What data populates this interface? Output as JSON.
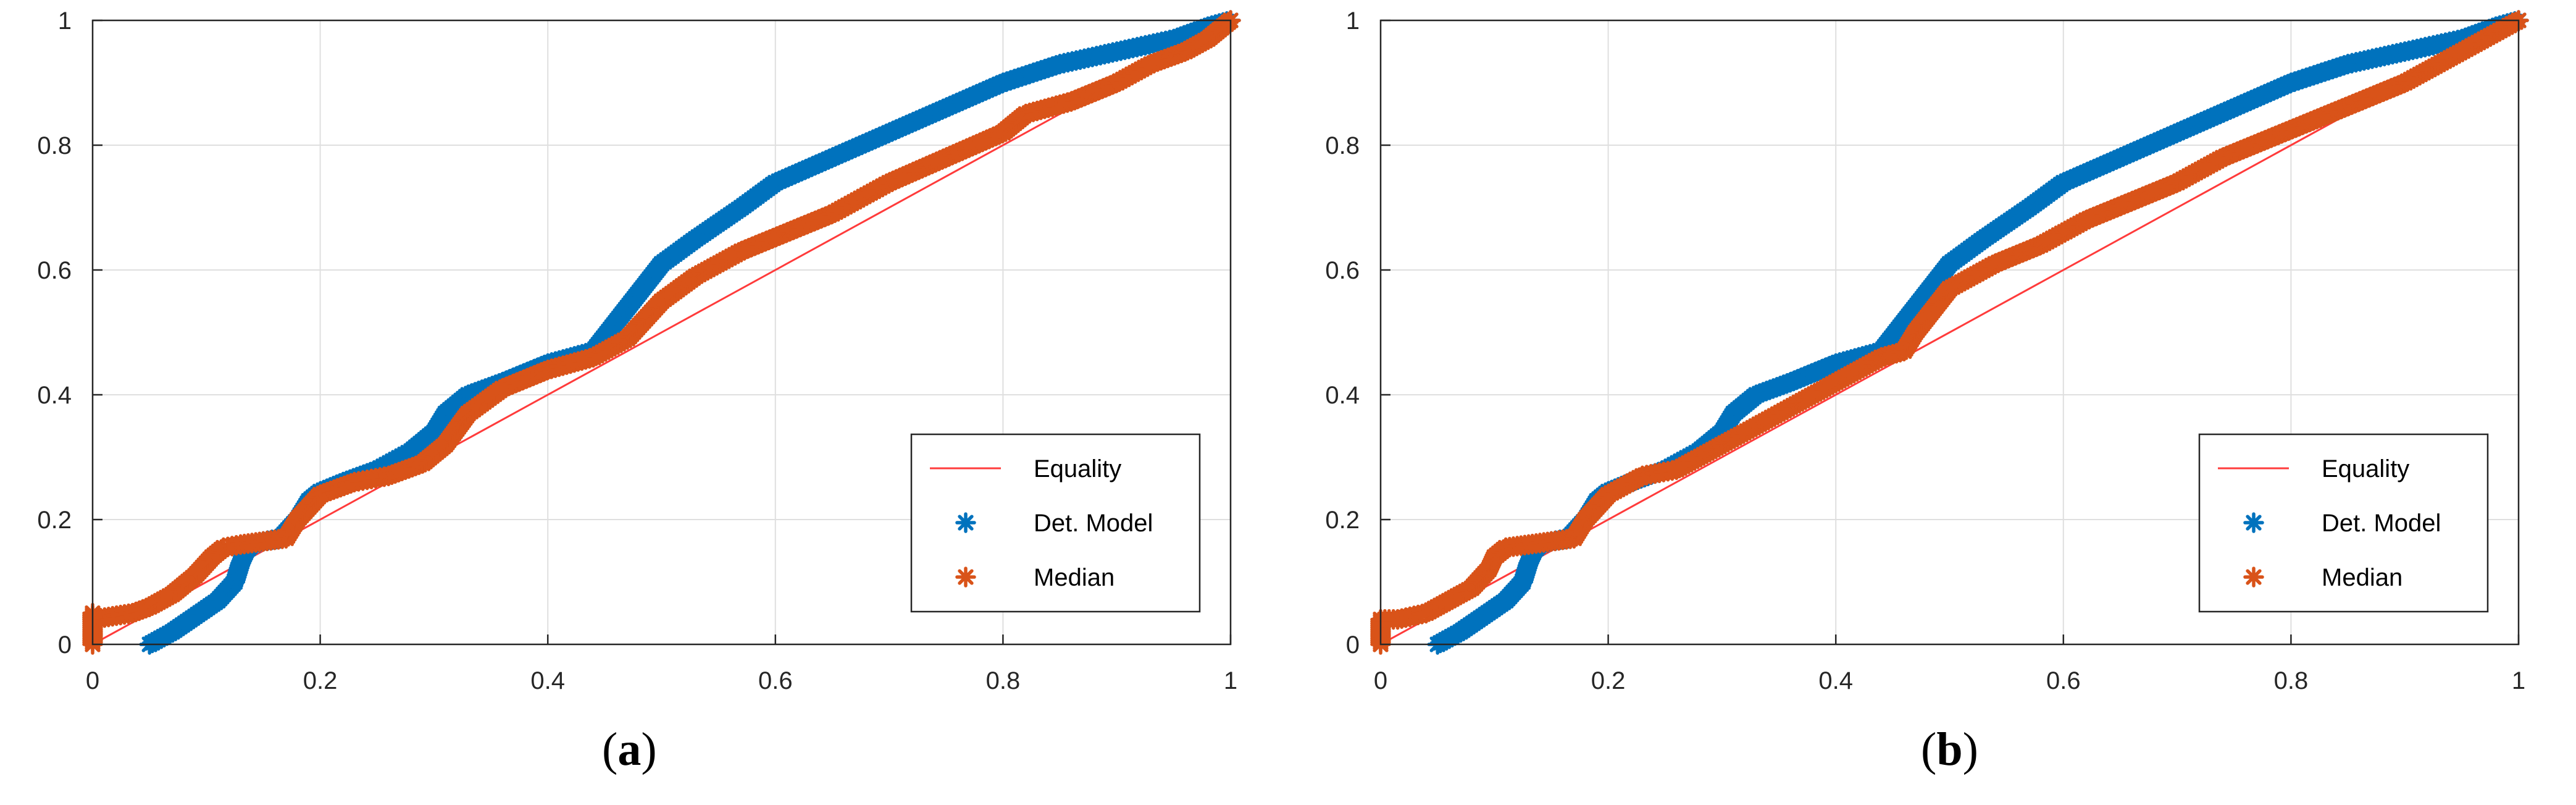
{
  "chart_data": [
    {
      "type": "line",
      "caption_letter": "a",
      "xlim": [
        0,
        1
      ],
      "ylim": [
        0,
        1
      ],
      "x_ticks": [
        "0",
        "0.2",
        "0.4",
        "0.6",
        "0.8",
        "1"
      ],
      "y_ticks": [
        "0",
        "0.2",
        "0.4",
        "0.6",
        "0.8",
        "1"
      ],
      "grid": true,
      "legend_position": "bottom-right",
      "colors": {
        "equality": "#ff3b3b",
        "det": "#0072bd",
        "median": "#d95319"
      },
      "series": [
        {
          "name": "Equality",
          "style": "line",
          "x": [
            0,
            1
          ],
          "y": [
            0,
            1
          ]
        },
        {
          "name": "Det. Model",
          "style": "marker",
          "x": [
            0.05,
            0.07,
            0.09,
            0.11,
            0.125,
            0.13,
            0.135,
            0.14,
            0.15,
            0.165,
            0.18,
            0.19,
            0.2,
            0.22,
            0.25,
            0.28,
            0.3,
            0.31,
            0.33,
            0.36,
            0.4,
            0.44,
            0.47,
            0.5,
            0.53,
            0.57,
            0.6,
            0.65,
            0.7,
            0.75,
            0.8,
            0.85,
            0.9,
            0.95,
            0.98,
            1.0
          ],
          "y": [
            0.0,
            0.02,
            0.045,
            0.07,
            0.1,
            0.13,
            0.15,
            0.16,
            0.165,
            0.17,
            0.2,
            0.23,
            0.245,
            0.26,
            0.28,
            0.31,
            0.34,
            0.37,
            0.4,
            0.42,
            0.45,
            0.47,
            0.54,
            0.61,
            0.65,
            0.7,
            0.74,
            0.78,
            0.82,
            0.86,
            0.9,
            0.93,
            0.95,
            0.97,
            0.99,
            1.0
          ]
        },
        {
          "name": "Median",
          "style": "marker",
          "x": [
            0,
            0,
            0,
            0,
            0,
            0,
            0,
            0.035,
            0.05,
            0.07,
            0.09,
            0.105,
            0.115,
            0.13,
            0.15,
            0.17,
            0.18,
            0.2,
            0.23,
            0.26,
            0.29,
            0.31,
            0.33,
            0.36,
            0.4,
            0.44,
            0.47,
            0.5,
            0.53,
            0.57,
            0.61,
            0.65,
            0.7,
            0.75,
            0.8,
            0.82,
            0.86,
            0.9,
            0.93,
            0.96,
            0.98,
            1.0
          ],
          "y": [
            0.0,
            0.01,
            0.02,
            0.03,
            0.04,
            0.05,
            0.04,
            0.05,
            0.06,
            0.08,
            0.11,
            0.14,
            0.155,
            0.16,
            0.165,
            0.17,
            0.2,
            0.24,
            0.26,
            0.27,
            0.29,
            0.32,
            0.37,
            0.41,
            0.44,
            0.46,
            0.49,
            0.55,
            0.59,
            0.63,
            0.66,
            0.69,
            0.74,
            0.78,
            0.82,
            0.85,
            0.87,
            0.9,
            0.93,
            0.95,
            0.97,
            1.0
          ]
        }
      ]
    },
    {
      "type": "line",
      "caption_letter": "b",
      "xlim": [
        0,
        1
      ],
      "ylim": [
        0,
        1
      ],
      "x_ticks": [
        "0",
        "0.2",
        "0.4",
        "0.6",
        "0.8",
        "1"
      ],
      "y_ticks": [
        "0",
        "0.2",
        "0.4",
        "0.6",
        "0.8",
        "1"
      ],
      "grid": true,
      "legend_position": "bottom-right",
      "colors": {
        "equality": "#ff3b3b",
        "det": "#0072bd",
        "median": "#d95319"
      },
      "series": [
        {
          "name": "Equality",
          "style": "line",
          "x": [
            0,
            1
          ],
          "y": [
            0,
            1
          ]
        },
        {
          "name": "Det. Model",
          "style": "marker",
          "x": [
            0.05,
            0.07,
            0.09,
            0.11,
            0.125,
            0.13,
            0.135,
            0.14,
            0.15,
            0.165,
            0.18,
            0.19,
            0.2,
            0.22,
            0.25,
            0.28,
            0.3,
            0.31,
            0.33,
            0.36,
            0.4,
            0.44,
            0.47,
            0.5,
            0.53,
            0.57,
            0.6,
            0.65,
            0.7,
            0.75,
            0.8,
            0.85,
            0.9,
            0.95,
            0.98,
            1.0
          ],
          "y": [
            0.0,
            0.02,
            0.045,
            0.07,
            0.1,
            0.13,
            0.15,
            0.16,
            0.165,
            0.17,
            0.2,
            0.23,
            0.245,
            0.26,
            0.28,
            0.31,
            0.34,
            0.37,
            0.4,
            0.42,
            0.45,
            0.47,
            0.54,
            0.61,
            0.65,
            0.7,
            0.74,
            0.78,
            0.82,
            0.86,
            0.9,
            0.93,
            0.95,
            0.97,
            0.99,
            1.0
          ]
        },
        {
          "name": "Median",
          "style": "marker",
          "x": [
            0,
            0,
            0,
            0,
            0,
            0.015,
            0.04,
            0.06,
            0.08,
            0.095,
            0.1,
            0.11,
            0.13,
            0.15,
            0.17,
            0.18,
            0.2,
            0.23,
            0.26,
            0.3,
            0.33,
            0.36,
            0.4,
            0.44,
            0.46,
            0.47,
            0.5,
            0.54,
            0.58,
            0.62,
            0.66,
            0.7,
            0.74,
            0.78,
            0.82,
            0.86,
            0.9,
            0.94,
            0.97,
            1.0
          ],
          "y": [
            0.0,
            0.01,
            0.02,
            0.03,
            0.04,
            0.04,
            0.05,
            0.07,
            0.09,
            0.12,
            0.14,
            0.155,
            0.16,
            0.165,
            0.17,
            0.2,
            0.24,
            0.27,
            0.28,
            0.32,
            0.35,
            0.38,
            0.42,
            0.46,
            0.47,
            0.5,
            0.57,
            0.61,
            0.64,
            0.68,
            0.71,
            0.74,
            0.78,
            0.81,
            0.84,
            0.87,
            0.9,
            0.94,
            0.97,
            1.0
          ]
        }
      ]
    }
  ]
}
